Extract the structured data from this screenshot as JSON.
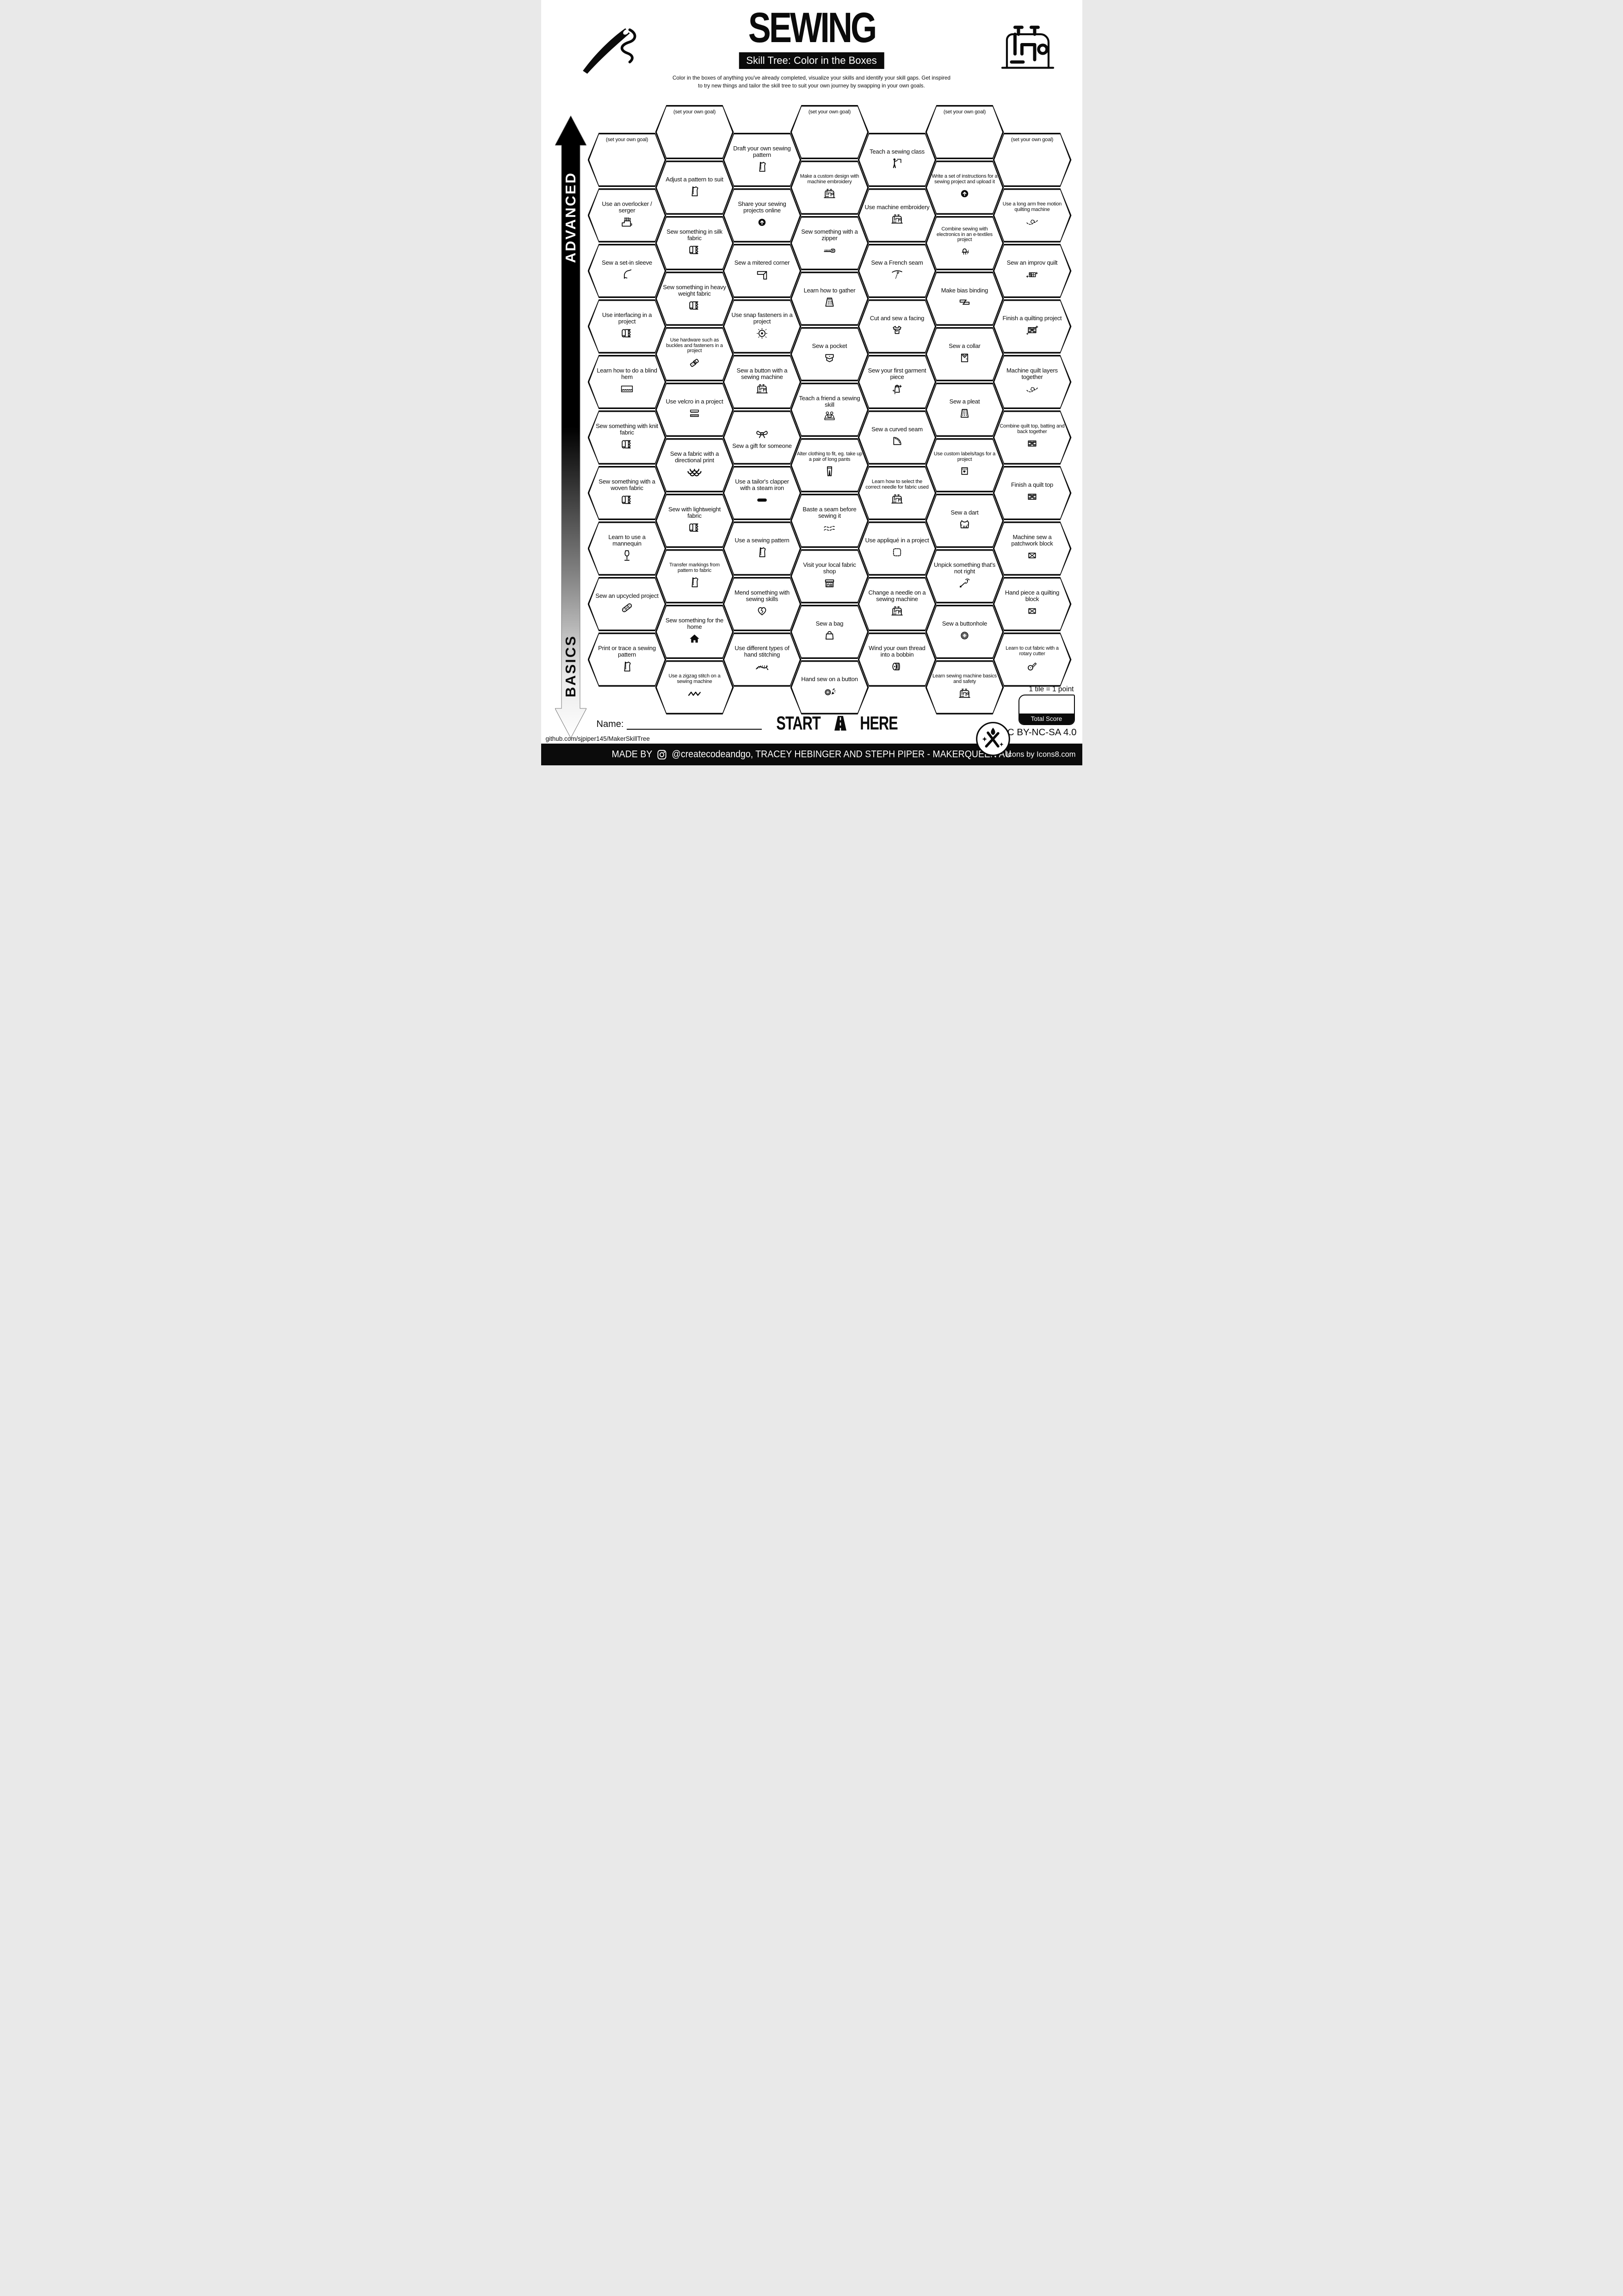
{
  "header": {
    "title": "SEWING",
    "subtitle": "Skill Tree: Color in the Boxes",
    "desc1": "Color in the boxes of anything you've already completed, visualize your skills and identify your skill gaps.  Get inspired",
    "desc2": "to try new things and tailor the skill tree to suit your own journey by swapping in your own goals."
  },
  "axis": {
    "top_label": "ADVANCED",
    "bottom_label": "BASICS"
  },
  "columns": [
    {
      "tiles": [
        {
          "label": "(set your own goal)",
          "goal": true
        },
        {
          "label": "Use an overlocker / serger",
          "icon": "serger"
        },
        {
          "label": "Sew a set-in sleeve",
          "icon": "sleeve"
        },
        {
          "label": "Use interfacing in a project",
          "icon": "fabric"
        },
        {
          "label": "Learn how to do a blind hem",
          "icon": "blindhem"
        },
        {
          "label": "Sew something with knit fabric",
          "icon": "fabric"
        },
        {
          "label": "Sew something with a woven fabric",
          "icon": "fabric"
        },
        {
          "label": "Learn to use a mannequin",
          "icon": "mannequin"
        },
        {
          "label": "Sew an upcycled project",
          "icon": "bandage"
        },
        {
          "label": "Print or trace a sewing pattern",
          "icon": "pattern"
        }
      ]
    },
    {
      "tiles": [
        {
          "label": "(set your own goal)",
          "goal": true
        },
        {
          "label": "Adjust a pattern to suit",
          "icon": "pattern"
        },
        {
          "label": "Sew something in silk fabric",
          "icon": "fabric"
        },
        {
          "label": "Sew something in heavy weight fabric",
          "icon": "fabric"
        },
        {
          "label": "Use hardware such as buckles and fasteners in a project",
          "icon": "buckle",
          "small": true
        },
        {
          "label": "Use velcro in a project",
          "icon": "velcro"
        },
        {
          "label": "Sew a fabric with a directional print",
          "icon": "scales"
        },
        {
          "label": "Sew with lightweight fabric",
          "icon": "fabric"
        },
        {
          "label": "Transfer markings from pattern to fabric",
          "icon": "pattern",
          "small": true
        },
        {
          "label": "Sew something for the home",
          "icon": "home"
        },
        {
          "label": "Use a zigzag stitch on a sewing machine",
          "icon": "zigzag",
          "small": true
        }
      ]
    },
    {
      "tiles": [
        {
          "label": "Draft your own sewing pattern",
          "icon": "pattern"
        },
        {
          "label": "Share your sewing projects online",
          "icon": "upload"
        },
        {
          "label": "Sew a mitered corner",
          "icon": "corner"
        },
        {
          "label": "Use snap fasteners in a project",
          "icon": "snap"
        },
        {
          "label": "Sew a button with a sewing machine",
          "icon": "machine"
        },
        {
          "label": "Sew a gift for someone",
          "icon": "bow",
          "iconPos": "top"
        },
        {
          "label": "Use a tailor's clapper with a steam iron",
          "icon": "clapper"
        },
        {
          "label": "Use a sewing pattern",
          "icon": "pattern"
        },
        {
          "label": "Mend something with sewing skills",
          "icon": "heartmend"
        },
        {
          "label": "Use different types of hand stitching",
          "icon": "stitches"
        }
      ]
    },
    {
      "tiles": [
        {
          "label": "(set your own goal)",
          "goal": true
        },
        {
          "label": "Make a custom design with machine embroidery",
          "icon": "machine",
          "small": true
        },
        {
          "label": "Sew something with a zipper",
          "icon": "zipper"
        },
        {
          "label": "Learn how to gather",
          "icon": "skirt"
        },
        {
          "label": "Sew a pocket",
          "icon": "pocket"
        },
        {
          "label": "Teach a friend a sewing skill",
          "icon": "friends"
        },
        {
          "label": "Alter clothing to fit, eg. take up a pair of long pants",
          "icon": "pants",
          "small": true
        },
        {
          "label": "Baste a seam before sewing it",
          "icon": "baste"
        },
        {
          "label": "Visit your local fabric shop",
          "icon": "shop"
        },
        {
          "label": "Sew a bag",
          "icon": "bag"
        },
        {
          "label": "Hand sew on a button",
          "icon": "buttonconfetti"
        }
      ]
    },
    {
      "tiles": [
        {
          "label": "Teach a sewing class",
          "icon": "teacher"
        },
        {
          "label": "Use machine embroidery",
          "icon": "machine"
        },
        {
          "label": "Sew a French seam",
          "icon": "frenchseam"
        },
        {
          "label": "Cut and sew a facing",
          "icon": "tshirt"
        },
        {
          "label": "Sew your first garment piece",
          "icon": "garment"
        },
        {
          "label": "Sew a curved seam",
          "icon": "curve"
        },
        {
          "label": "Learn how to select the correct needle for fabric used",
          "icon": "machine",
          "small": true
        },
        {
          "label": "Use appliqué in a project",
          "icon": "applique"
        },
        {
          "label": "Change a needle on a sewing machine",
          "icon": "machine"
        },
        {
          "label": "Wind your own thread into a bobbin",
          "icon": "bobbin"
        }
      ]
    },
    {
      "tiles": [
        {
          "label": "(set your own goal)",
          "goal": true
        },
        {
          "label": "Write a set of instructions for a sewing project and upload it",
          "icon": "upload",
          "small": true
        },
        {
          "label": "Combine sewing with electronics in an e-textiles project",
          "icon": "led",
          "small": true
        },
        {
          "label": "Make bias binding",
          "icon": "bias"
        },
        {
          "label": "Sew a collar",
          "icon": "collar"
        },
        {
          "label": "Sew a pleat",
          "icon": "pleat"
        },
        {
          "label": "Use custom labels/tags for a project",
          "icon": "label",
          "small": true
        },
        {
          "label": "Sew a dart",
          "icon": "dart"
        },
        {
          "label": "Unpick something that's not right",
          "icon": "unpick"
        },
        {
          "label": "Sew a buttonhole",
          "icon": "buttonhole"
        },
        {
          "label": "Learn sewing machine basics and safety",
          "icon": "machine",
          "small": true
        }
      ]
    },
    {
      "tiles": [
        {
          "label": "(set your own goal)",
          "goal": true
        },
        {
          "label": "Use a long arm free motion quilting machine",
          "icon": "freemotion",
          "small": true
        },
        {
          "label": "Sew an improv quilt",
          "icon": "improv"
        },
        {
          "label": "Finish a quilting project",
          "icon": "quiltsp"
        },
        {
          "label": "Machine quilt layers together",
          "icon": "freemotion"
        },
        {
          "label": "Combine quilt top, batting and back together",
          "icon": "quilt",
          "small": true
        },
        {
          "label": "Finish a quilt top",
          "icon": "quilt"
        },
        {
          "label": "Machine sew a patchwork block",
          "icon": "block"
        },
        {
          "label": "Hand piece a quilting block",
          "icon": "block"
        },
        {
          "label": "Learn to cut fabric with a rotary cutter",
          "icon": "rotary",
          "small": true
        }
      ]
    }
  ],
  "footer": {
    "start_label": "START",
    "here_label": "HERE",
    "name_label": "Name:",
    "github": "github.com/sjpiper145/MakerSkillTree",
    "points_note": "1 tile = 1 point",
    "total_score_label": "Total Score",
    "license": "CC BY-NC-SA 4.0",
    "made_by_label": "MADE BY",
    "made_by_rest": "@createcodeandgo, TRACEY HEBINGER  AND STEPH PIPER  -  MAKERQUEEN AU",
    "icons_credit": "Icons by Icons8.com"
  },
  "colors": {
    "ink": "#0b0b0b",
    "paper": "#ffffff"
  }
}
